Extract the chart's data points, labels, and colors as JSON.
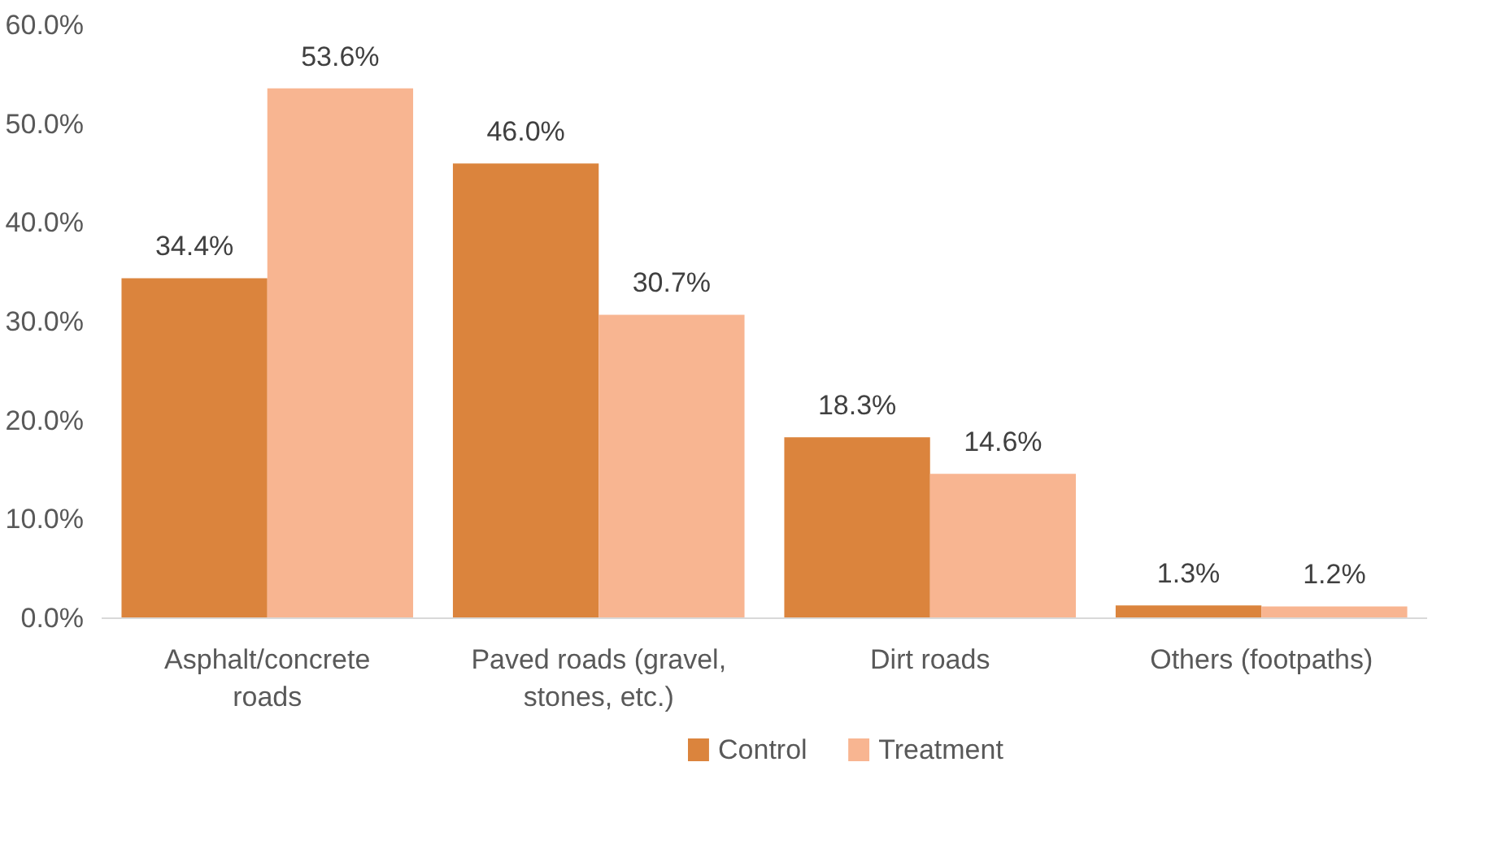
{
  "chart_data": {
    "type": "bar",
    "categories": [
      "Asphalt/concrete roads",
      "Paved roads (gravel, stones, etc.)",
      "Dirt roads",
      "Others (footpaths)"
    ],
    "series": [
      {
        "name": "Control",
        "color": "#db843d",
        "values": [
          34.4,
          46.0,
          18.3,
          1.3
        ],
        "value_labels": [
          "34.4%",
          "46.0%",
          "18.3%",
          "1.3%"
        ]
      },
      {
        "name": "Treatment",
        "color": "#f8b591",
        "values": [
          53.6,
          30.7,
          14.6,
          1.2
        ],
        "value_labels": [
          "53.6%",
          "30.7%",
          "14.6%",
          "1.2%"
        ]
      }
    ],
    "ylim": [
      0,
      60
    ],
    "yticks": [
      {
        "value": 0,
        "label": "0.0%"
      },
      {
        "value": 10,
        "label": "10.0%"
      },
      {
        "value": 20,
        "label": "20.0%"
      },
      {
        "value": 30,
        "label": "30.0%"
      },
      {
        "value": 40,
        "label": "40.0%"
      },
      {
        "value": 50,
        "label": "50.0%"
      },
      {
        "value": 60,
        "label": "60.0%"
      }
    ],
    "grid": false,
    "legend": "bottom"
  }
}
